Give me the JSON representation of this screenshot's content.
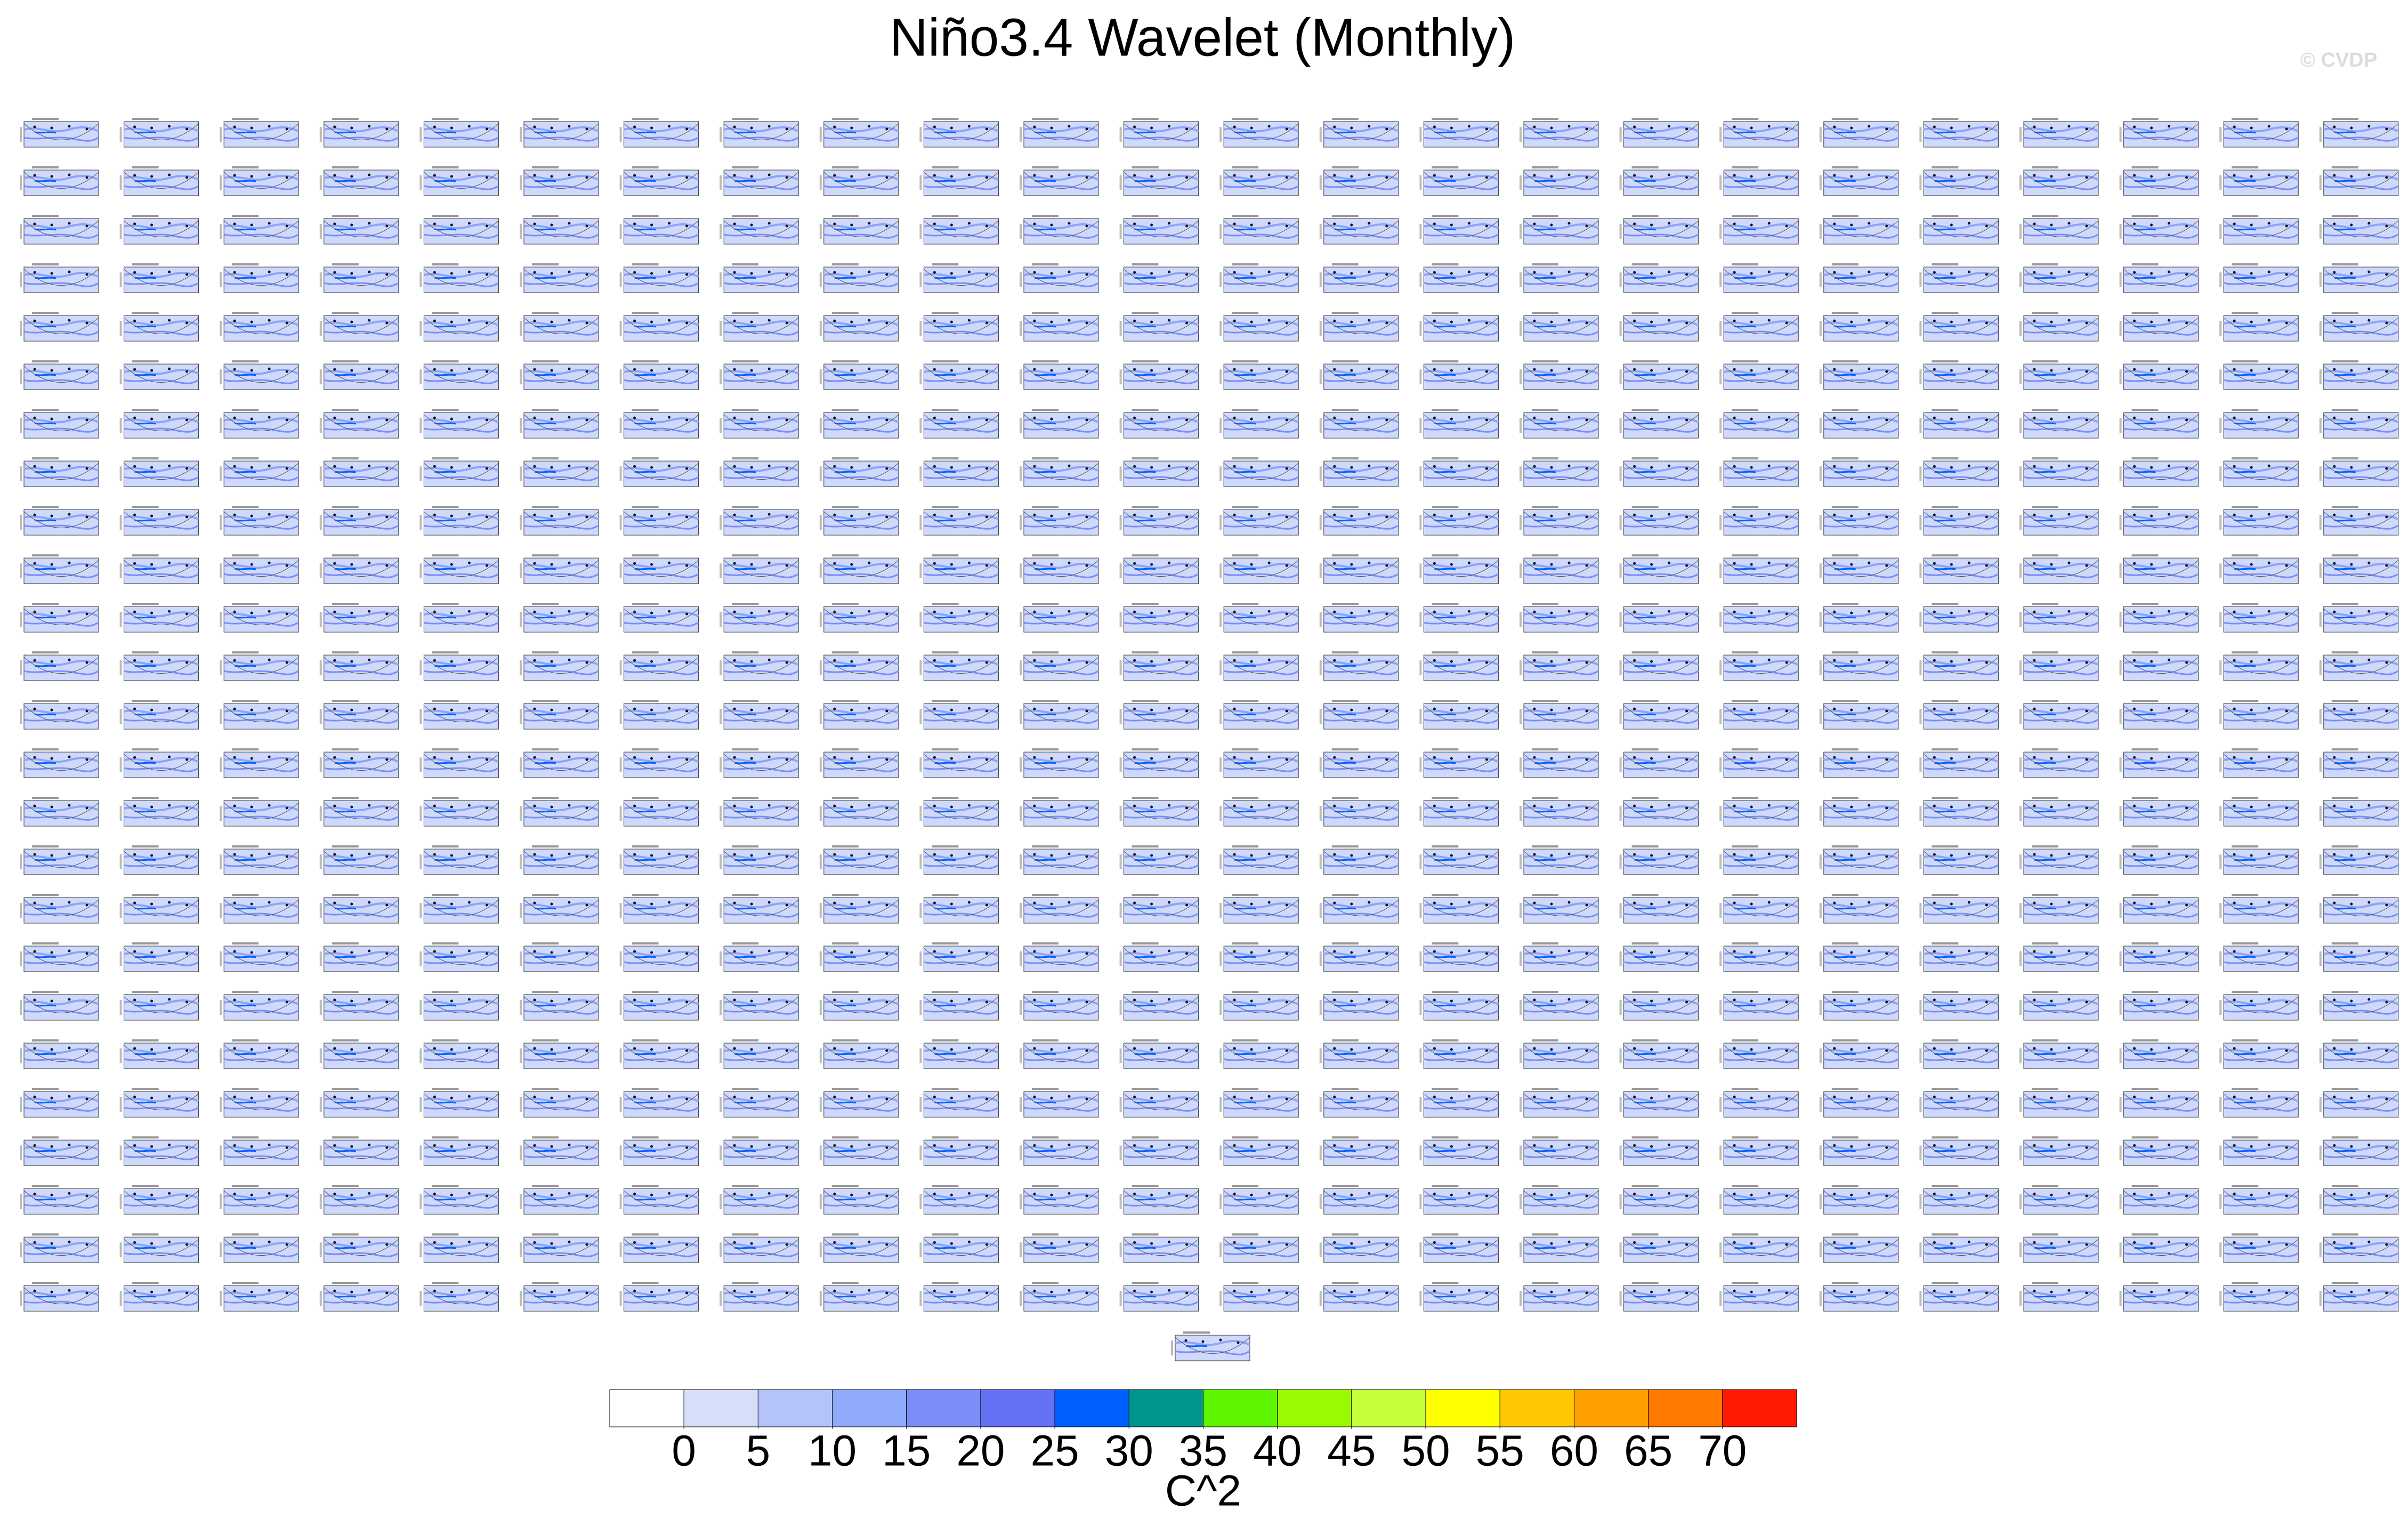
{
  "chart_data": {
    "type": "colorbar",
    "title": "Niño3.4 Wavelet (Monthly)",
    "watermark": "© CVDP",
    "colors": [
      "#ffffff",
      "#d6defa",
      "#b4c4f9",
      "#8fa9fb",
      "#7a8df8",
      "#6670f5",
      "#0060ff",
      "#00968f",
      "#5ff500",
      "#9cfa00",
      "#c5ff3a",
      "#ffff00",
      "#ffc800",
      "#ff9f00",
      "#ff7800",
      "#ff1a00"
    ],
    "levels": [
      0,
      5,
      10,
      15,
      20,
      25,
      30,
      35,
      40,
      45,
      50,
      55,
      60,
      65,
      70
    ],
    "label": "C^2"
  }
}
